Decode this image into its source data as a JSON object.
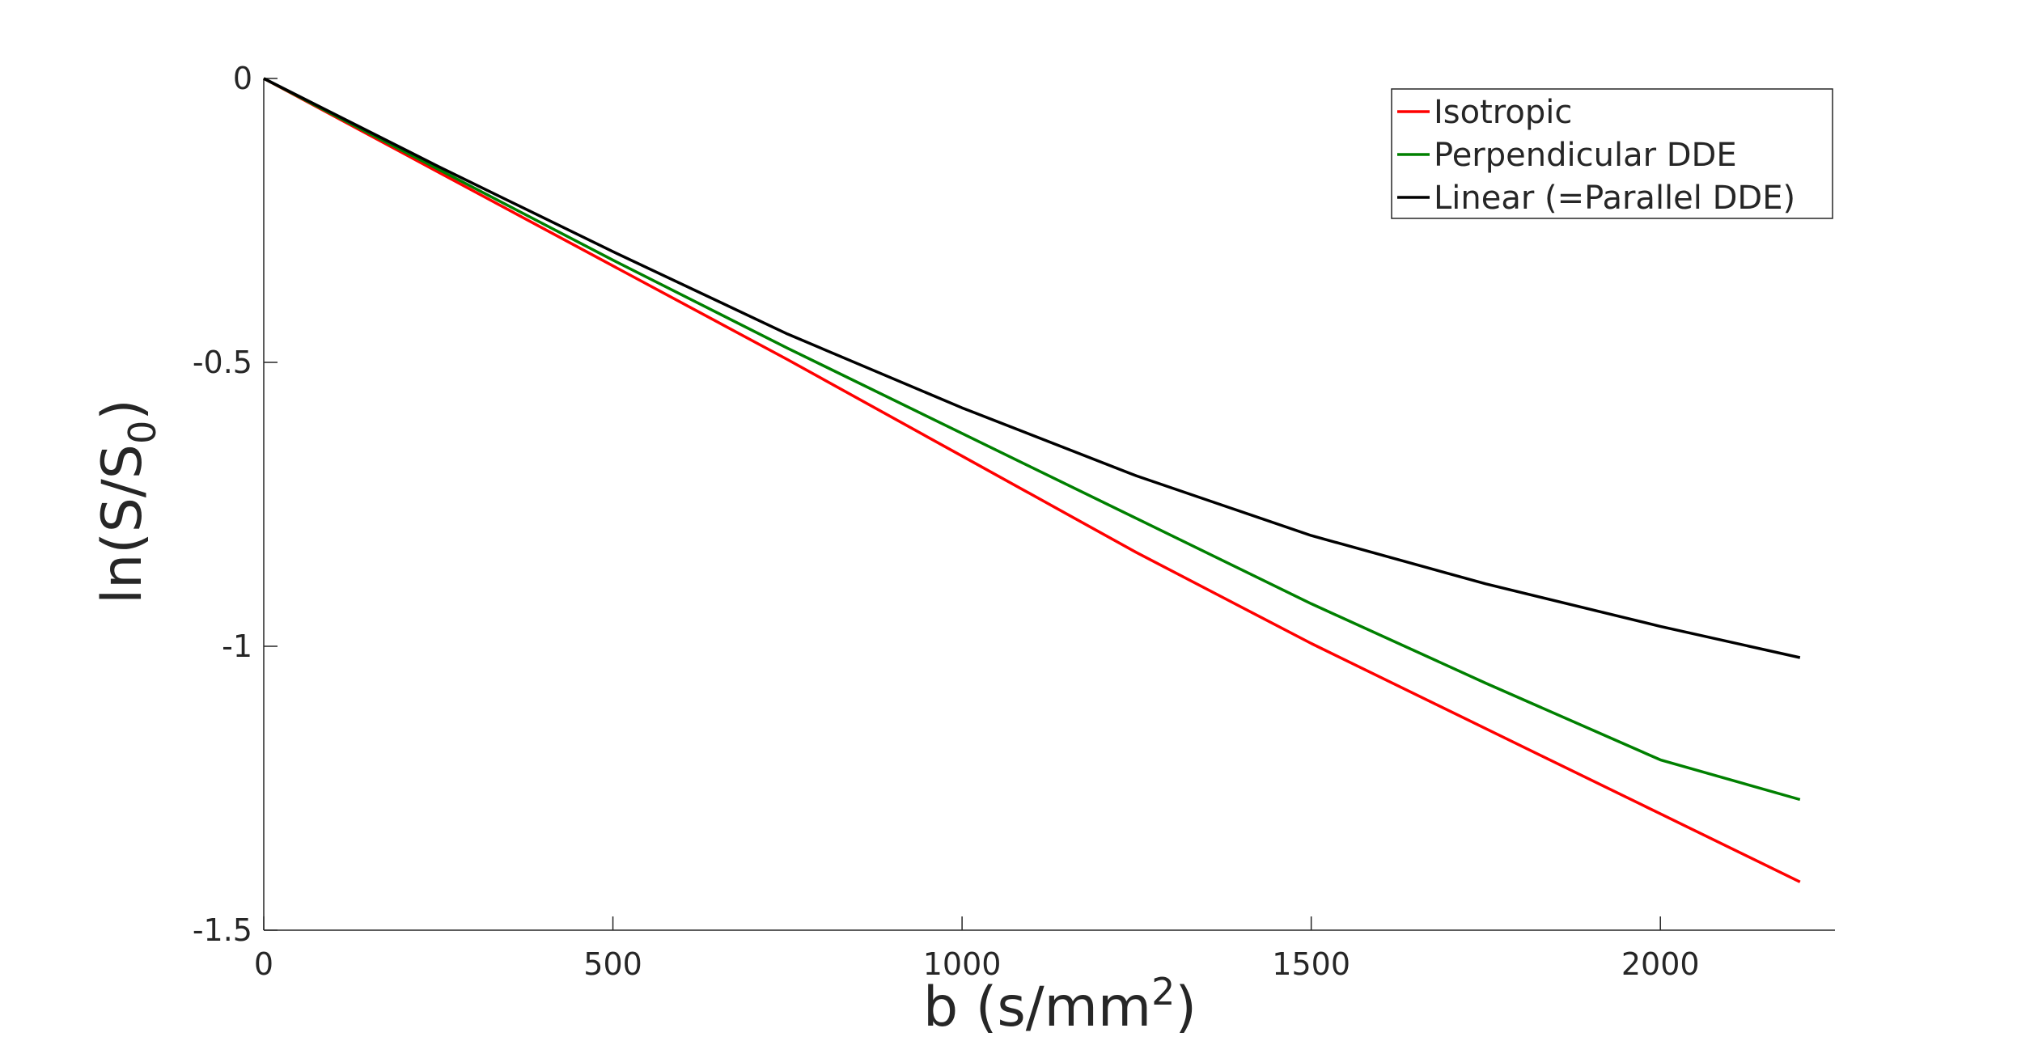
{
  "chart_data": {
    "type": "line",
    "title": "",
    "xlabel": {
      "main": "b (s/mm",
      "sup": "2",
      "tail": ")"
    },
    "ylabel": {
      "main": "ln(S/S",
      "sub": "0",
      "tail": ")"
    },
    "xlim": [
      0,
      2250
    ],
    "ylim": [
      -1.5,
      0
    ],
    "xticks": [
      0,
      500,
      1000,
      1500,
      2000
    ],
    "xtick_labels": [
      "0",
      "500",
      "1000",
      "1500",
      "2000"
    ],
    "yticks": [
      0,
      -0.5,
      -1,
      -1.5
    ],
    "ytick_labels": [
      "0",
      "-0.5",
      "-1",
      "-1.5"
    ],
    "grid": false,
    "legend_position": "top-right",
    "x": [
      0,
      250,
      500,
      750,
      1000,
      1250,
      1500,
      1750,
      2000,
      2200
    ],
    "series": [
      {
        "name": "Isotropic",
        "color": "#ff0000",
        "values": [
          0,
          -0.165,
          -0.33,
          -0.495,
          -0.665,
          -0.835,
          -0.995,
          -1.145,
          -1.295,
          -1.415
        ]
      },
      {
        "name": "Perpendicular DDE",
        "color": "#008000",
        "values": [
          0,
          -0.16,
          -0.32,
          -0.475,
          -0.625,
          -0.775,
          -0.925,
          -1.065,
          -1.2,
          -1.27
        ]
      },
      {
        "name": "Linear (=Parallel DDE)",
        "color": "#000000",
        "values": [
          0,
          -0.155,
          -0.305,
          -0.45,
          -0.58,
          -0.7,
          -0.805,
          -0.89,
          -0.965,
          -1.02
        ]
      }
    ]
  }
}
